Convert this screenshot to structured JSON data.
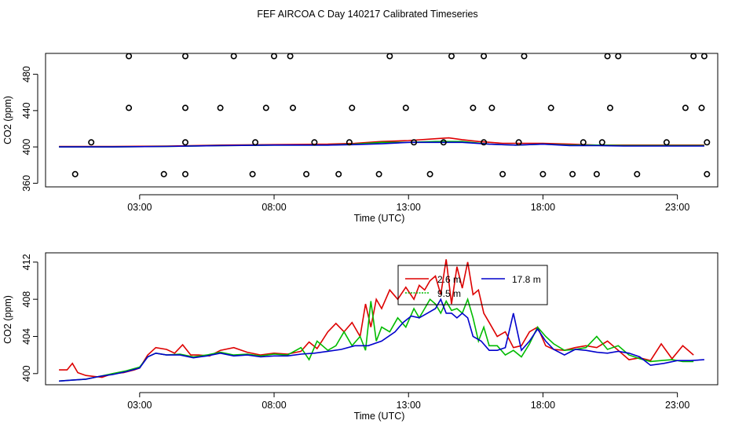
{
  "title": "FEF AIRCOA C  Day 140217  Calibrated Timeseries",
  "colors": {
    "s2_6m": "#dd0000",
    "s9_5m": "#00bb00",
    "s17_8m": "#0000cc",
    "axis": "#000000"
  },
  "chart_data": [
    {
      "type": "line",
      "xlabel": "Time (UTC)",
      "ylabel": "CO2 (ppm)",
      "xlim": [
        -0.5,
        24.5
      ],
      "ylim": [
        356,
        503
      ],
      "x_ticks": [
        3,
        8,
        13,
        18,
        23
      ],
      "x_tick_labels": [
        "03:00",
        "08:00",
        "13:00",
        "18:00",
        "23:00"
      ],
      "y_ticks": [
        360,
        400,
        440,
        480
      ],
      "y_tick_labels": [
        "360",
        "400",
        "440",
        "480"
      ],
      "grid": false,
      "series": [
        {
          "color": "#dd0000",
          "x": [
            0.0,
            2,
            4,
            6,
            8,
            10,
            11,
            12,
            13,
            14,
            14.5,
            15,
            15.6,
            16.5,
            17,
            18,
            19,
            20,
            21,
            22,
            23,
            24
          ],
          "values": [
            400.5,
            400.5,
            401,
            402,
            402.5,
            403,
            404,
            406,
            407,
            409,
            410,
            408,
            406,
            404,
            404,
            404,
            403,
            402,
            402,
            402,
            402,
            402
          ]
        },
        {
          "color": "#00bb00",
          "x": [
            0.0,
            2,
            4,
            6,
            8,
            10,
            11,
            12,
            13,
            14,
            15,
            16,
            17,
            18,
            19,
            20,
            21,
            22,
            23,
            24
          ],
          "values": [
            400,
            400,
            400.5,
            401.5,
            402,
            402,
            403,
            405,
            405,
            406,
            406,
            403,
            402,
            403,
            402,
            402,
            401.5,
            401.5,
            401.5,
            401.5
          ]
        },
        {
          "color": "#0000cc",
          "x": [
            0.0,
            2,
            4,
            6,
            8,
            10,
            11,
            12,
            13,
            14,
            15,
            16,
            17,
            18,
            19,
            20,
            21,
            22,
            23,
            24
          ],
          "values": [
            400,
            400,
            400.5,
            401.5,
            402,
            402,
            402.5,
            403.5,
            405,
            405,
            405,
            403,
            402,
            403,
            401.5,
            401.5,
            401,
            401,
            401,
            401
          ]
        },
        {
          "type": "scatter",
          "marker": "open-circle",
          "color": "#000000",
          "x": [
            0.6,
            1.2,
            2.6,
            2.6,
            3.9,
            4.7,
            4.7,
            4.7,
            4.7,
            6.0,
            6.5,
            7.2,
            7.3,
            7.7,
            8.0,
            8.6,
            8.7,
            9.2,
            9.5,
            10.4,
            10.8,
            10.9,
            11.9,
            12.3,
            12.9,
            13.2,
            13.8,
            14.3,
            14.6,
            15.4,
            15.8,
            15.8,
            16.1,
            16.5,
            17.1,
            17.3,
            18.0,
            18.3,
            19.1,
            19.5,
            20.0,
            20.2,
            20.4,
            20.5,
            20.8,
            21.5,
            22.6,
            23.3,
            23.6,
            23.9,
            24.0,
            24.1,
            24.1
          ],
          "values": [
            370,
            405,
            443,
            500,
            370,
            370,
            405,
            443,
            500,
            443,
            500,
            370,
            405,
            443,
            500,
            500,
            443,
            370,
            405,
            370,
            405,
            443,
            370,
            500,
            443,
            405,
            370,
            405,
            500,
            443,
            500,
            405,
            443,
            370,
            405,
            500,
            370,
            443,
            370,
            405,
            370,
            405,
            500,
            443,
            500,
            370,
            405,
            443,
            500,
            443,
            500,
            405,
            370
          ]
        }
      ]
    },
    {
      "type": "line",
      "xlabel": "Time (UTC)",
      "ylabel": "CO2 (ppm)",
      "xlim": [
        -0.5,
        24.5
      ],
      "ylim": [
        398.8,
        413
      ],
      "x_ticks": [
        3,
        8,
        13,
        18,
        23
      ],
      "x_tick_labels": [
        "03:00",
        "08:00",
        "13:00",
        "18:00",
        "23:00"
      ],
      "y_ticks": [
        400,
        404,
        408,
        412
      ],
      "y_tick_labels": [
        "400",
        "404",
        "408",
        "412"
      ],
      "grid": false,
      "legend": {
        "placement": "top-center",
        "entries": [
          {
            "label": "2.6 m",
            "color": "#dd0000"
          },
          {
            "label": "9.5 m",
            "color": "#00bb00"
          },
          {
            "label": "17.8 m",
            "color": "#0000cc"
          }
        ]
      },
      "series": [
        {
          "name": "2.6 m",
          "color": "#dd0000",
          "x": [
            0.0,
            0.3,
            0.5,
            0.7,
            1.0,
            1.3,
            1.6,
            2.0,
            2.4,
            2.8,
            3.0,
            3.3,
            3.6,
            4.0,
            4.3,
            4.6,
            4.9,
            5.2,
            5.6,
            6.0,
            6.5,
            7.0,
            7.5,
            8.0,
            8.5,
            9.0,
            9.3,
            9.6,
            10.0,
            10.3,
            10.6,
            10.9,
            11.2,
            11.4,
            11.6,
            11.8,
            12.0,
            12.3,
            12.6,
            12.9,
            13.2,
            13.4,
            13.6,
            13.8,
            14.0,
            14.2,
            14.4,
            14.6,
            14.8,
            15.0,
            15.2,
            15.4,
            15.6,
            15.8,
            16.0,
            16.3,
            16.6,
            16.9,
            17.2,
            17.5,
            17.8,
            18.1,
            18.4,
            18.8,
            19.2,
            19.6,
            20.0,
            20.4,
            20.8,
            21.2,
            21.6,
            22.0,
            22.4,
            22.8,
            23.2,
            23.6
          ],
          "values": [
            400.4,
            400.4,
            401.1,
            400.1,
            399.8,
            399.7,
            399.6,
            400.0,
            400.1,
            400.4,
            400.6,
            402.0,
            402.8,
            402.6,
            402.2,
            403.1,
            402.0,
            402.0,
            401.9,
            402.5,
            402.8,
            402.3,
            402.0,
            402.2,
            402.1,
            402.4,
            403.4,
            402.7,
            404.5,
            405.4,
            404.5,
            405.5,
            404.0,
            407.5,
            405.0,
            408.0,
            407.0,
            409.0,
            408.0,
            409.3,
            408.0,
            409.5,
            409.0,
            410.0,
            410.5,
            408.5,
            412.3,
            407.5,
            411.5,
            409.2,
            412.0,
            408.5,
            409.0,
            406.5,
            405.5,
            404.0,
            404.5,
            402.8,
            403.0,
            404.5,
            405.0,
            403.0,
            402.6,
            402.5,
            402.8,
            403.0,
            402.8,
            403.5,
            402.5,
            401.5,
            401.7,
            401.4,
            403.2,
            401.6,
            403.0,
            402.0
          ]
        },
        {
          "name": "9.5 m",
          "color": "#00bb00",
          "x": [
            0.0,
            0.5,
            1.0,
            1.5,
            2.0,
            2.5,
            3.0,
            3.3,
            3.6,
            4.0,
            4.5,
            5.0,
            5.5,
            6.0,
            6.5,
            7.0,
            7.5,
            8.0,
            8.5,
            9.0,
            9.3,
            9.6,
            10.0,
            10.3,
            10.6,
            10.9,
            11.2,
            11.4,
            11.6,
            11.8,
            12.0,
            12.3,
            12.6,
            12.9,
            13.2,
            13.4,
            13.6,
            13.8,
            14.0,
            14.2,
            14.4,
            14.6,
            14.8,
            15.0,
            15.2,
            15.4,
            15.6,
            15.8,
            16.0,
            16.3,
            16.6,
            16.9,
            17.2,
            17.5,
            17.8,
            18.1,
            18.4,
            18.8,
            19.2,
            19.6,
            20.0,
            20.4,
            20.8,
            21.2,
            21.6,
            22.0,
            22.4,
            22.8,
            23.2,
            23.6
          ],
          "values": [
            399.2,
            399.3,
            399.4,
            399.7,
            400.0,
            400.3,
            400.7,
            401.8,
            402.2,
            402.0,
            402.1,
            401.8,
            402.0,
            402.3,
            402.0,
            402.1,
            401.9,
            402.1,
            402.0,
            402.8,
            401.5,
            403.5,
            402.5,
            403.0,
            404.5,
            403.0,
            404.0,
            402.5,
            407.8,
            403.5,
            405.0,
            404.5,
            406.0,
            405.0,
            407.0,
            406.0,
            407.0,
            408.0,
            407.5,
            406.5,
            407.8,
            406.8,
            407.0,
            406.5,
            408.0,
            406.0,
            403.5,
            405.0,
            403.0,
            403.0,
            402.0,
            402.5,
            401.8,
            403.2,
            405.0,
            404.0,
            403.2,
            402.5,
            402.6,
            402.8,
            404.0,
            402.6,
            403.0,
            402.0,
            401.6,
            401.3,
            401.4,
            401.5,
            401.3,
            401.3
          ]
        },
        {
          "name": "17.8 m",
          "color": "#0000cc",
          "x": [
            0.0,
            0.5,
            1.0,
            1.5,
            2.0,
            2.5,
            3.0,
            3.3,
            3.6,
            4.0,
            4.5,
            5.0,
            5.5,
            6.0,
            6.5,
            7.0,
            7.5,
            8.0,
            8.5,
            9.0,
            9.5,
            10.0,
            10.5,
            11.0,
            11.5,
            12.0,
            12.5,
            12.8,
            13.1,
            13.4,
            13.7,
            14.0,
            14.2,
            14.4,
            14.6,
            14.8,
            15.0,
            15.2,
            15.4,
            15.7,
            16.0,
            16.3,
            16.6,
            16.9,
            17.2,
            17.5,
            17.8,
            18.1,
            18.4,
            18.8,
            19.2,
            19.6,
            20.0,
            20.4,
            20.8,
            21.2,
            21.6,
            22.0,
            22.5,
            23.0,
            23.5,
            24.0
          ],
          "values": [
            399.2,
            399.3,
            399.4,
            399.7,
            399.9,
            400.2,
            400.6,
            401.8,
            402.2,
            402.0,
            402.0,
            401.7,
            401.9,
            402.2,
            401.9,
            402.0,
            401.8,
            401.9,
            401.9,
            402.1,
            402.2,
            402.4,
            402.6,
            403.0,
            403.0,
            403.5,
            404.5,
            405.5,
            406.2,
            406.0,
            406.5,
            407.0,
            408.0,
            406.5,
            406.5,
            406.0,
            406.5,
            406.0,
            404.0,
            403.5,
            402.5,
            402.5,
            402.8,
            406.5,
            402.5,
            403.5,
            404.8,
            403.5,
            402.6,
            402.0,
            402.6,
            402.5,
            402.3,
            402.2,
            402.4,
            402.2,
            401.8,
            400.9,
            401.1,
            401.4,
            401.4,
            401.5
          ]
        }
      ]
    }
  ]
}
